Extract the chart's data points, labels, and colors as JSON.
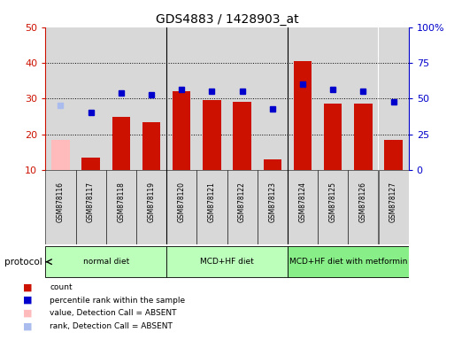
{
  "title": "GDS4883 / 1428903_at",
  "samples": [
    "GSM878116",
    "GSM878117",
    "GSM878118",
    "GSM878119",
    "GSM878120",
    "GSM878121",
    "GSM878122",
    "GSM878123",
    "GSM878124",
    "GSM878125",
    "GSM878126",
    "GSM878127"
  ],
  "bar_values": [
    18.5,
    13.5,
    25.0,
    23.5,
    32.0,
    29.5,
    29.0,
    13.0,
    40.5,
    28.5,
    28.5,
    18.5
  ],
  "bar_absent": [
    true,
    false,
    false,
    false,
    false,
    false,
    false,
    false,
    false,
    false,
    false,
    false
  ],
  "percentile_values": [
    28.0,
    26.0,
    31.5,
    31.0,
    32.5,
    32.0,
    32.0,
    27.0,
    34.0,
    32.5,
    32.0,
    29.0
  ],
  "percentile_absent": [
    true,
    false,
    false,
    false,
    false,
    false,
    false,
    false,
    false,
    false,
    false,
    false
  ],
  "ylim_left": [
    10,
    50
  ],
  "left_ticks": [
    10,
    20,
    30,
    40,
    50
  ],
  "right_tick_positions": [
    10,
    20,
    30,
    40,
    50
  ],
  "right_tick_labels": [
    "0",
    "25",
    "50",
    "75",
    "100%"
  ],
  "groups": [
    {
      "label": "normal diet",
      "start": 0,
      "end": 4,
      "color": "#bbffbb"
    },
    {
      "label": "MCD+HF diet",
      "start": 4,
      "end": 8,
      "color": "#bbffbb"
    },
    {
      "label": "MCD+HF diet with metformin",
      "start": 8,
      "end": 12,
      "color": "#88ee88"
    }
  ],
  "protocol_label": "protocol",
  "bar_color_normal": "#cc1100",
  "bar_color_absent": "#ffbbbb",
  "dot_color_normal": "#0000cc",
  "dot_color_absent": "#aabbee",
  "col_bg_color": "#d8d8d8",
  "title_fontsize": 10,
  "axis_color_left": "#cc1100",
  "axis_color_right": "#0000cc",
  "legend_items": [
    {
      "label": "count",
      "color": "#cc1100"
    },
    {
      "label": "percentile rank within the sample",
      "color": "#0000cc"
    },
    {
      "label": "value, Detection Call = ABSENT",
      "color": "#ffbbbb"
    },
    {
      "label": "rank, Detection Call = ABSENT",
      "color": "#aabbee"
    }
  ]
}
